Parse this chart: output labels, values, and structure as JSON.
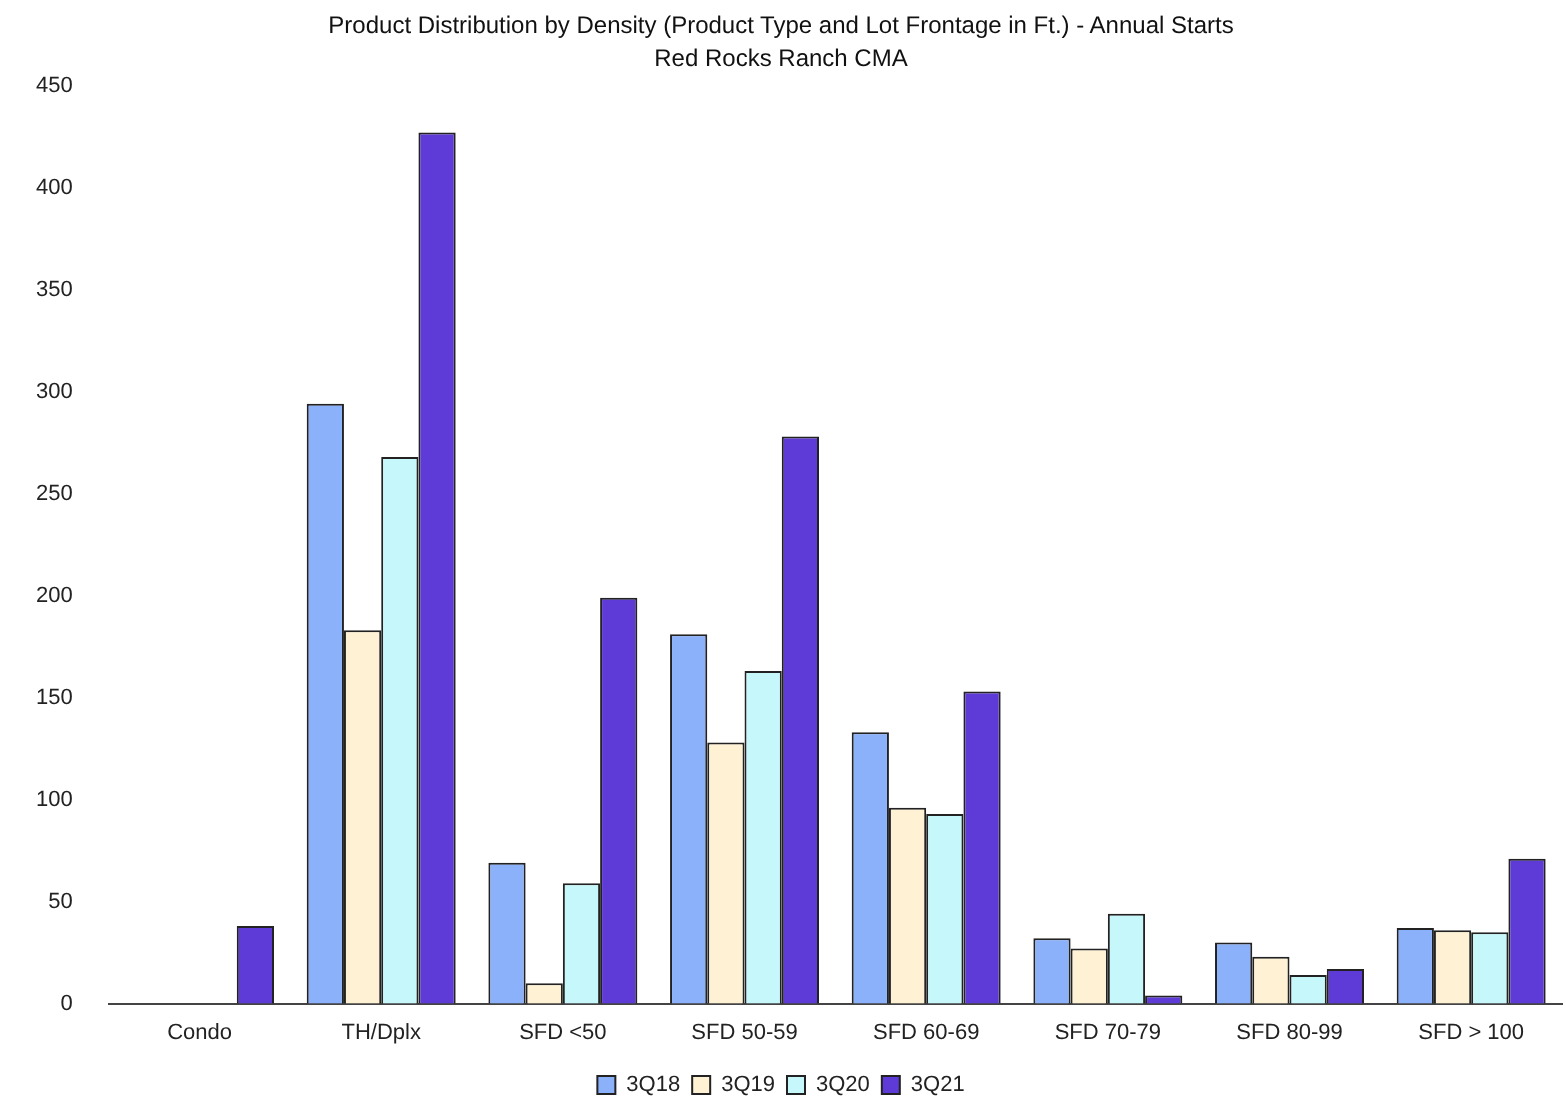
{
  "chart_data": {
    "type": "bar",
    "title": "Product Distribution by Density (Product Type and Lot Frontage in Ft.) - Annual Starts",
    "subtitle": "Red Rocks Ranch CMA",
    "categories": [
      "Condo",
      "TH/Dplx",
      "SFD <50",
      "SFD 50-59",
      "SFD 60-69",
      "SFD 70-79",
      "SFD 80-99",
      "SFD > 100"
    ],
    "series": [
      {
        "name": "3Q18",
        "color": "#8bb1fb",
        "values": [
          0,
          294,
          69,
          181,
          133,
          32,
          30,
          37
        ]
      },
      {
        "name": "3Q19",
        "color": "#fff2d4",
        "values": [
          0,
          183,
          10,
          128,
          96,
          27,
          23,
          36
        ]
      },
      {
        "name": "3Q20",
        "color": "#c6f8fb",
        "values": [
          0,
          268,
          59,
          163,
          93,
          44,
          14,
          35
        ]
      },
      {
        "name": "3Q21",
        "color": "#5e3ad6",
        "values": [
          38,
          427,
          199,
          278,
          153,
          4,
          17,
          71
        ]
      }
    ],
    "ylim": [
      0,
      450
    ],
    "yticks": [
      0,
      50,
      100,
      150,
      200,
      250,
      300,
      350,
      400,
      450
    ],
    "grid": false,
    "legend": "bottom"
  }
}
